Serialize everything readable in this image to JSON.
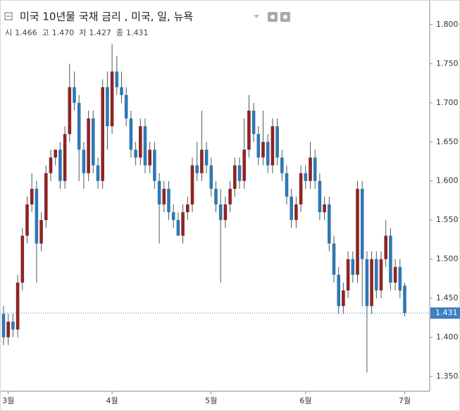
{
  "chart_data": {
    "type": "candlestick",
    "title": "미국 10년물 국채 금리 , 미국, 일, 뉴욕",
    "ohlc_header": [
      {
        "name": "시",
        "value_label": "1.466"
      },
      {
        "name": "고",
        "value_label": "1.470"
      },
      {
        "name": "저",
        "value_label": "1.427"
      },
      {
        "name": "종",
        "value_label": "1.431"
      }
    ],
    "categories": [
      null,
      "3월",
      null,
      null,
      null,
      null,
      null,
      null,
      null,
      null,
      null,
      null,
      null,
      null,
      null,
      null,
      null,
      null,
      null,
      null,
      null,
      null,
      null,
      "4월",
      null,
      null,
      null,
      null,
      null,
      null,
      null,
      null,
      null,
      null,
      null,
      null,
      null,
      null,
      null,
      null,
      null,
      null,
      null,
      null,
      "5월",
      null,
      null,
      null,
      null,
      null,
      null,
      null,
      null,
      null,
      null,
      null,
      null,
      null,
      null,
      null,
      null,
      null,
      null,
      null,
      "6월",
      null,
      null,
      null,
      null,
      null,
      null,
      null,
      null,
      null,
      null,
      null,
      null,
      null,
      null,
      null,
      null,
      null,
      null,
      null,
      null,
      "7월"
    ],
    "open": [
      1.43,
      1.4,
      1.42,
      1.41,
      1.47,
      1.53,
      1.57,
      1.59,
      1.52,
      1.55,
      1.61,
      1.63,
      1.64,
      1.6,
      1.66,
      1.72,
      1.7,
      1.64,
      1.61,
      1.68,
      1.62,
      1.6,
      1.72,
      1.67,
      1.74,
      1.72,
      1.71,
      1.68,
      1.64,
      1.63,
      1.67,
      1.62,
      1.64,
      1.6,
      1.57,
      1.59,
      1.56,
      1.55,
      1.53,
      1.56,
      1.57,
      1.62,
      1.61,
      1.64,
      1.62,
      1.59,
      1.57,
      1.55,
      1.57,
      1.59,
      1.62,
      1.6,
      1.64,
      1.69,
      1.66,
      1.63,
      1.65,
      1.62,
      1.67,
      1.63,
      1.61,
      1.58,
      1.55,
      1.57,
      1.61,
      1.6,
      1.63,
      1.6,
      1.56,
      1.57,
      1.52,
      1.48,
      1.44,
      1.46,
      1.5,
      1.48,
      1.59,
      1.5,
      1.44,
      1.5,
      1.46,
      1.5,
      1.53,
      1.47,
      1.49,
      1.466
    ],
    "high": [
      1.44,
      1.43,
      1.43,
      1.48,
      1.54,
      1.58,
      1.61,
      1.6,
      1.56,
      1.62,
      1.64,
      1.64,
      1.65,
      1.67,
      1.75,
      1.74,
      1.71,
      1.65,
      1.69,
      1.69,
      1.63,
      1.73,
      1.74,
      1.775,
      1.76,
      1.74,
      1.72,
      1.69,
      1.65,
      1.68,
      1.68,
      1.65,
      1.65,
      1.61,
      1.6,
      1.6,
      1.57,
      1.56,
      1.57,
      1.58,
      1.63,
      1.65,
      1.69,
      1.65,
      1.63,
      1.6,
      1.59,
      1.58,
      1.6,
      1.63,
      1.63,
      1.68,
      1.71,
      1.7,
      1.67,
      1.69,
      1.66,
      1.68,
      1.68,
      1.64,
      1.62,
      1.59,
      1.58,
      1.62,
      1.62,
      1.65,
      1.64,
      1.61,
      1.58,
      1.58,
      1.53,
      1.49,
      1.47,
      1.51,
      1.51,
      1.6,
      1.6,
      1.51,
      1.51,
      1.51,
      1.51,
      1.55,
      1.54,
      1.5,
      1.5,
      1.47
    ],
    "low": [
      1.39,
      1.39,
      1.4,
      1.4,
      1.46,
      1.52,
      1.56,
      1.47,
      1.51,
      1.54,
      1.6,
      1.62,
      1.59,
      1.59,
      1.65,
      1.69,
      1.6,
      1.59,
      1.6,
      1.61,
      1.59,
      1.59,
      1.64,
      1.66,
      1.71,
      1.7,
      1.67,
      1.63,
      1.62,
      1.62,
      1.61,
      1.61,
      1.59,
      1.52,
      1.56,
      1.55,
      1.54,
      1.53,
      1.52,
      1.55,
      1.56,
      1.6,
      1.6,
      1.61,
      1.58,
      1.56,
      1.47,
      1.54,
      1.56,
      1.58,
      1.59,
      1.59,
      1.63,
      1.65,
      1.62,
      1.62,
      1.61,
      1.61,
      1.62,
      1.6,
      1.57,
      1.54,
      1.54,
      1.56,
      1.59,
      1.59,
      1.59,
      1.55,
      1.55,
      1.51,
      1.47,
      1.43,
      1.43,
      1.45,
      1.47,
      1.47,
      1.44,
      1.355,
      1.43,
      1.45,
      1.45,
      1.49,
      1.46,
      1.46,
      1.45,
      1.427
    ],
    "close": [
      1.4,
      1.42,
      1.41,
      1.47,
      1.53,
      1.57,
      1.59,
      1.52,
      1.55,
      1.61,
      1.63,
      1.64,
      1.6,
      1.66,
      1.72,
      1.7,
      1.64,
      1.61,
      1.68,
      1.62,
      1.6,
      1.72,
      1.67,
      1.74,
      1.72,
      1.71,
      1.68,
      1.64,
      1.63,
      1.67,
      1.62,
      1.64,
      1.6,
      1.57,
      1.59,
      1.56,
      1.55,
      1.53,
      1.56,
      1.57,
      1.62,
      1.61,
      1.64,
      1.62,
      1.59,
      1.57,
      1.55,
      1.57,
      1.59,
      1.62,
      1.6,
      1.64,
      1.69,
      1.66,
      1.63,
      1.65,
      1.62,
      1.67,
      1.63,
      1.61,
      1.58,
      1.55,
      1.57,
      1.61,
      1.6,
      1.63,
      1.6,
      1.56,
      1.57,
      1.52,
      1.48,
      1.44,
      1.46,
      1.5,
      1.48,
      1.59,
      1.5,
      1.44,
      1.5,
      1.46,
      1.5,
      1.53,
      1.47,
      1.49,
      1.46,
      1.431
    ],
    "up_color": "#8e2424",
    "down_color": "#2f78b3",
    "last_color": "#3d7fc1",
    "ylim": [
      1.331,
      1.827
    ],
    "yticks": [
      {
        "value": 1.35,
        "label": "1.350"
      },
      {
        "value": 1.4,
        "label": "1.400"
      },
      {
        "value": 1.45,
        "label": "1.450"
      },
      {
        "value": 1.5,
        "label": "1.500"
      },
      {
        "value": 1.55,
        "label": "1.550"
      },
      {
        "value": 1.6,
        "label": "1.600"
      },
      {
        "value": 1.65,
        "label": "1.650"
      },
      {
        "value": 1.7,
        "label": "1.700"
      },
      {
        "value": 1.75,
        "label": "1.750"
      },
      {
        "value": 1.8,
        "label": "1.800"
      }
    ]
  }
}
